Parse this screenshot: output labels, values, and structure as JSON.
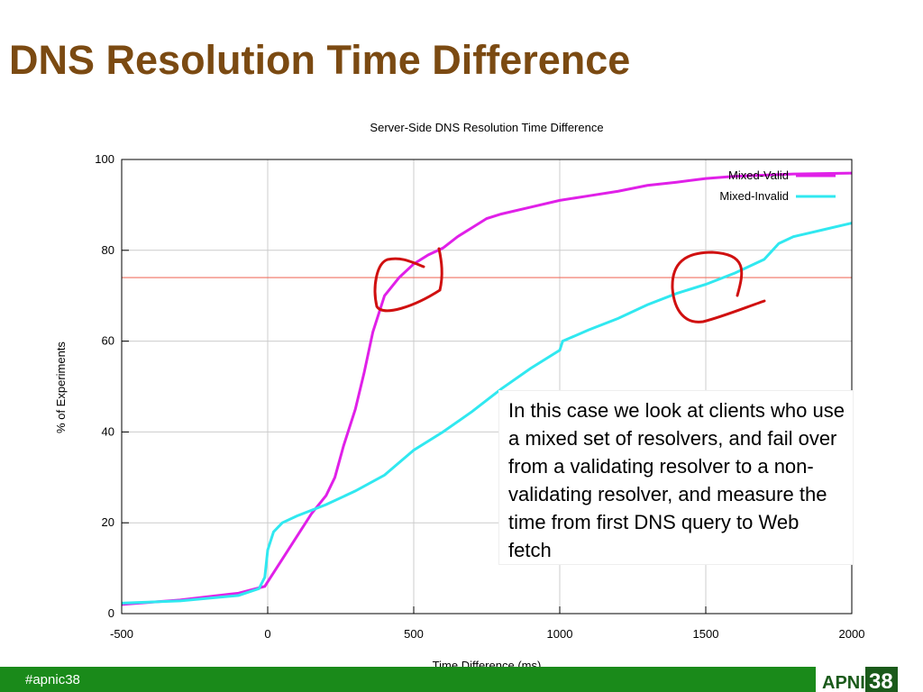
{
  "header": {
    "title": "DNS Resolution Time Difference"
  },
  "chart_data": {
    "type": "line",
    "title": "Server-Side DNS Resolution Time Difference",
    "x_label": "Time Difference (ms)",
    "y_label": "% of Experiments",
    "xlim": [
      -500,
      2000
    ],
    "xticks": [
      -500,
      0,
      500,
      1000,
      1500,
      2000
    ],
    "ylim": [
      0,
      100
    ],
    "yticks": [
      0,
      20,
      40,
      60,
      80,
      100
    ],
    "grid": true,
    "legend": "top-right",
    "reference_line": {
      "y": 74,
      "color": "#f07060"
    },
    "series": [
      {
        "name": "Mixed-Valid",
        "color": "#e020e8",
        "x": [
          -500,
          -300,
          -100,
          -10,
          0,
          50,
          100,
          150,
          200,
          230,
          260,
          300,
          330,
          360,
          400,
          450,
          500,
          550,
          600,
          650,
          700,
          750,
          800,
          900,
          1000,
          1100,
          1200,
          1300,
          1400,
          1500,
          1600,
          1800,
          2000
        ],
        "values": [
          2,
          3,
          4.5,
          6,
          7,
          12,
          17,
          22,
          26,
          30,
          37,
          45,
          53,
          62,
          70,
          74,
          77,
          79,
          80.5,
          83,
          85,
          87,
          88,
          89.5,
          91,
          92,
          93,
          94.3,
          95,
          95.8,
          96.3,
          96.8,
          97
        ]
      },
      {
        "name": "Mixed-Invalid",
        "color": "#30e8f0",
        "x": [
          -500,
          -300,
          -100,
          -30,
          -10,
          0,
          20,
          50,
          100,
          200,
          300,
          400,
          500,
          600,
          700,
          800,
          900,
          1000,
          1010,
          1100,
          1200,
          1300,
          1400,
          1500,
          1600,
          1700,
          1750,
          1800,
          1900,
          2000
        ],
        "values": [
          2.3,
          2.8,
          4,
          5.5,
          8,
          14,
          18,
          20,
          21.5,
          24,
          27,
          30.5,
          36,
          40,
          44.5,
          49.5,
          54,
          58,
          60,
          62.5,
          65,
          68,
          70.5,
          72.5,
          75,
          78,
          81.5,
          83,
          84.5,
          86
        ]
      }
    ]
  },
  "note": "In this case we look at clients who use a mixed set of resolvers, and fail over from a validating resolver to a non-validating resolver, and measure the time from first DNS query to Web fetch",
  "footer": {
    "hashtag": "#apnic38",
    "logo": "APNIC",
    "logo_number": "38"
  }
}
